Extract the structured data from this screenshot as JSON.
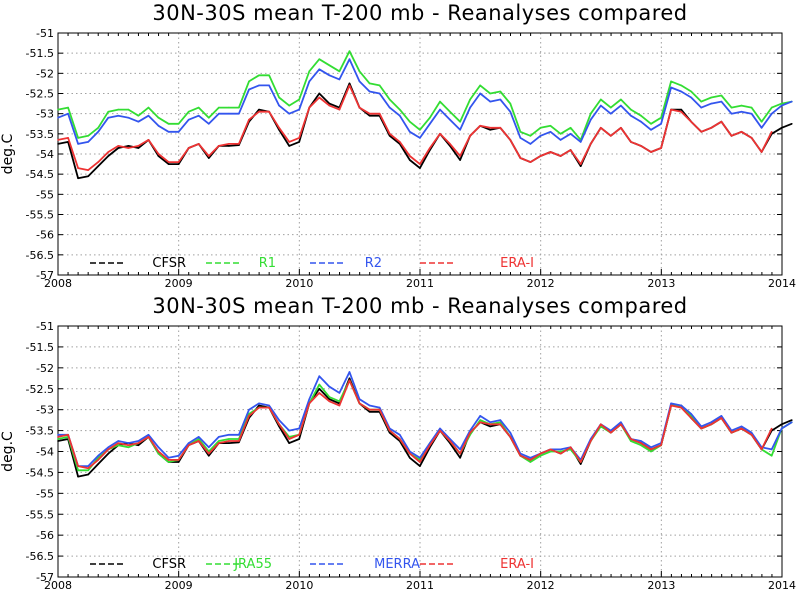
{
  "chart_data": [
    {
      "type": "line",
      "title": "30N-30S mean T-200 mb - Reanalyses compared",
      "ylabel": "deg.C",
      "xlabel": "",
      "ylim": [
        -57,
        -51
      ],
      "yticks": [
        -51,
        -51.5,
        -52,
        -52.5,
        -53,
        -53.5,
        -54,
        -54.5,
        -55,
        -55.5,
        -56,
        -56.5,
        -57
      ],
      "xlim": [
        2008,
        2014
      ],
      "xticks": [
        2008,
        2009,
        2010,
        2011,
        2012,
        2013,
        2014
      ],
      "grid": true,
      "legend_position": "bottom-left",
      "series": [
        {
          "name": "CFSR",
          "color": "#000000",
          "x_start": 2008.0,
          "x_step": 0.0833,
          "values": [
            -53.75,
            -53.7,
            -54.6,
            -54.55,
            -54.3,
            -54.05,
            -53.85,
            -53.8,
            -53.85,
            -53.65,
            -54.05,
            -54.25,
            -54.25,
            -53.85,
            -53.75,
            -54.1,
            -53.8,
            -53.8,
            -53.78,
            -53.2,
            -52.9,
            -52.95,
            -53.4,
            -53.8,
            -53.7,
            -52.85,
            -52.5,
            -52.75,
            -52.85,
            -52.25,
            -52.85,
            -53.05,
            -53.05,
            -53.55,
            -53.75,
            -54.15,
            -54.35,
            -53.9,
            -53.5,
            -53.8,
            -54.15,
            -53.55,
            -53.3,
            -53.4,
            -53.35,
            -53.65,
            -54.1,
            -54.2,
            -54.05,
            -53.95,
            -54.05,
            -53.9,
            -54.3,
            -53.75,
            -53.35,
            -53.55,
            -53.35,
            -53.7,
            -53.8,
            -53.95,
            -53.85,
            -52.9,
            -52.9,
            -53.2,
            -53.45,
            -53.35,
            -53.2,
            -53.55,
            -53.45,
            -53.6,
            -53.95,
            -53.5,
            -53.35,
            -53.25
          ]
        },
        {
          "name": "R1",
          "color": "#33dd33",
          "x_start": 2008.0,
          "x_step": 0.0833,
          "values": [
            -52.9,
            -52.85,
            -53.6,
            -53.55,
            -53.35,
            -52.95,
            -52.9,
            -52.9,
            -53.05,
            -52.85,
            -53.1,
            -53.25,
            -53.25,
            -52.95,
            -52.85,
            -53.1,
            -52.85,
            -52.85,
            -52.85,
            -52.2,
            -52.05,
            -52.05,
            -52.6,
            -52.8,
            -52.65,
            -51.95,
            -51.65,
            -51.8,
            -51.95,
            -51.45,
            -51.95,
            -52.25,
            -52.3,
            -52.65,
            -52.9,
            -53.2,
            -53.4,
            -53.1,
            -52.7,
            -52.95,
            -53.2,
            -52.65,
            -52.3,
            -52.5,
            -52.45,
            -52.75,
            -53.45,
            -53.55,
            -53.35,
            -53.3,
            -53.5,
            -53.35,
            -53.65,
            -53.0,
            -52.65,
            -52.85,
            -52.65,
            -52.9,
            -53.05,
            -53.25,
            -53.1,
            -52.2,
            -52.3,
            -52.45,
            -52.7,
            -52.6,
            -52.55,
            -52.85,
            -52.8,
            -52.85,
            -53.2,
            -52.85,
            -52.75,
            -52.7
          ]
        },
        {
          "name": "R2",
          "color": "#3355ee",
          "x_start": 2008.0,
          "x_step": 0.0833,
          "values": [
            -53.1,
            -53.0,
            -53.75,
            -53.7,
            -53.45,
            -53.1,
            -53.05,
            -53.1,
            -53.2,
            -53.05,
            -53.3,
            -53.45,
            -53.45,
            -53.15,
            -53.05,
            -53.25,
            -53.0,
            -53.0,
            -53.0,
            -52.4,
            -52.3,
            -52.3,
            -52.8,
            -53.0,
            -52.9,
            -52.2,
            -51.9,
            -52.05,
            -52.15,
            -51.65,
            -52.2,
            -52.45,
            -52.5,
            -52.85,
            -53.05,
            -53.45,
            -53.6,
            -53.25,
            -52.9,
            -53.15,
            -53.4,
            -52.85,
            -52.5,
            -52.7,
            -52.65,
            -52.95,
            -53.6,
            -53.75,
            -53.55,
            -53.45,
            -53.65,
            -53.5,
            -53.7,
            -53.15,
            -52.8,
            -53.0,
            -52.8,
            -53.05,
            -53.2,
            -53.4,
            -53.25,
            -52.35,
            -52.45,
            -52.6,
            -52.85,
            -52.75,
            -52.7,
            -53.0,
            -52.95,
            -53.0,
            -53.35,
            -53.0,
            -52.8,
            -52.7
          ]
        },
        {
          "name": "ERA-I",
          "color": "#ee3333",
          "x_start": 2008.0,
          "x_step": 0.0833,
          "values": [
            -53.65,
            -53.6,
            -54.35,
            -54.4,
            -54.2,
            -53.95,
            -53.8,
            -53.85,
            -53.8,
            -53.65,
            -54.0,
            -54.2,
            -54.2,
            -53.85,
            -53.75,
            -54.05,
            -53.8,
            -53.75,
            -53.75,
            -53.15,
            -52.95,
            -52.95,
            -53.35,
            -53.7,
            -53.6,
            -52.85,
            -52.6,
            -52.8,
            -52.9,
            -52.3,
            -52.85,
            -53.0,
            -53.0,
            -53.5,
            -53.7,
            -54.05,
            -54.25,
            -53.85,
            -53.5,
            -53.75,
            -54.05,
            -53.55,
            -53.3,
            -53.35,
            -53.35,
            -53.65,
            -54.1,
            -54.2,
            -54.05,
            -53.95,
            -54.05,
            -53.9,
            -54.25,
            -53.75,
            -53.35,
            -53.55,
            -53.35,
            -53.7,
            -53.8,
            -53.95,
            -53.85,
            -52.9,
            -52.95,
            -53.2,
            -53.45,
            -53.35,
            -53.2,
            -53.55,
            -53.45,
            -53.6,
            -53.95,
            -53.45
          ]
        }
      ]
    },
    {
      "type": "line",
      "title": "30N-30S mean T-200 mb - Reanalyses compared",
      "ylabel": "deg.C",
      "xlabel": "",
      "ylim": [
        -57,
        -51
      ],
      "yticks": [
        -51,
        -51.5,
        -52,
        -52.5,
        -53,
        -53.5,
        -54,
        -54.5,
        -55,
        -55.5,
        -56,
        -56.5,
        -57
      ],
      "xlim": [
        2008,
        2014
      ],
      "xticks": [
        2008,
        2009,
        2010,
        2011,
        2012,
        2013,
        2014
      ],
      "grid": true,
      "legend_position": "bottom-left",
      "series": [
        {
          "name": "CFSR",
          "color": "#000000",
          "x_start": 2008.0,
          "x_step": 0.0833,
          "values": [
            -53.75,
            -53.7,
            -54.6,
            -54.55,
            -54.3,
            -54.05,
            -53.85,
            -53.8,
            -53.85,
            -53.65,
            -54.05,
            -54.25,
            -54.25,
            -53.85,
            -53.75,
            -54.1,
            -53.8,
            -53.8,
            -53.78,
            -53.2,
            -52.9,
            -52.95,
            -53.4,
            -53.8,
            -53.7,
            -52.85,
            -52.5,
            -52.75,
            -52.85,
            -52.25,
            -52.85,
            -53.05,
            -53.05,
            -53.55,
            -53.75,
            -54.15,
            -54.35,
            -53.9,
            -53.5,
            -53.8,
            -54.15,
            -53.55,
            -53.3,
            -53.4,
            -53.35,
            -53.65,
            -54.1,
            -54.2,
            -54.05,
            -53.95,
            -54.05,
            -53.9,
            -54.3,
            -53.75,
            -53.35,
            -53.55,
            -53.35,
            -53.7,
            -53.8,
            -53.95,
            -53.85,
            -52.9,
            -52.9,
            -53.2,
            -53.45,
            -53.35,
            -53.2,
            -53.55,
            -53.45,
            -53.6,
            -53.95,
            -53.5,
            -53.35,
            -53.25
          ]
        },
        {
          "name": "JRA55",
          "color": "#33dd33",
          "x_start": 2008.0,
          "x_step": 0.0833,
          "values": [
            -53.7,
            -53.65,
            -54.45,
            -54.45,
            -54.15,
            -53.95,
            -53.85,
            -53.9,
            -53.8,
            -53.65,
            -54.05,
            -54.25,
            -54.2,
            -53.85,
            -53.7,
            -54.0,
            -53.75,
            -53.7,
            -53.7,
            -53.1,
            -52.95,
            -52.95,
            -53.35,
            -53.65,
            -53.6,
            -52.85,
            -52.4,
            -52.7,
            -52.8,
            -52.3,
            -52.85,
            -53.0,
            -53.0,
            -53.5,
            -53.7,
            -54.05,
            -54.2,
            -53.8,
            -53.5,
            -53.75,
            -54.05,
            -53.6,
            -53.25,
            -53.35,
            -53.3,
            -53.65,
            -54.1,
            -54.25,
            -54.1,
            -54.0,
            -54.0,
            -53.95,
            -54.25,
            -53.75,
            -53.4,
            -53.55,
            -53.35,
            -53.75,
            -53.85,
            -54.0,
            -53.85,
            -52.9,
            -52.9,
            -53.15,
            -53.45,
            -53.35,
            -53.2,
            -53.55,
            -53.45,
            -53.6,
            -53.95,
            -54.1,
            -53.45,
            -53.3
          ]
        },
        {
          "name": "MERRA",
          "color": "#3355ee",
          "x_start": 2008.0,
          "x_step": 0.0833,
          "values": [
            -53.6,
            -53.6,
            -54.35,
            -54.35,
            -54.1,
            -53.9,
            -53.75,
            -53.8,
            -53.75,
            -53.6,
            -53.9,
            -54.15,
            -54.1,
            -53.8,
            -53.65,
            -53.9,
            -53.65,
            -53.6,
            -53.6,
            -53.0,
            -52.85,
            -52.9,
            -53.25,
            -53.5,
            -53.45,
            -52.75,
            -52.2,
            -52.45,
            -52.6,
            -52.1,
            -52.75,
            -52.9,
            -52.95,
            -53.45,
            -53.6,
            -54.0,
            -54.15,
            -53.8,
            -53.45,
            -53.7,
            -53.95,
            -53.5,
            -53.15,
            -53.3,
            -53.25,
            -53.55,
            -54.05,
            -54.15,
            -54.05,
            -53.95,
            -53.95,
            -53.9,
            -54.2,
            -53.7,
            -53.35,
            -53.5,
            -53.3,
            -53.7,
            -53.75,
            -53.9,
            -53.8,
            -52.85,
            -52.9,
            -53.1,
            -53.4,
            -53.3,
            -53.15,
            -53.5,
            -53.4,
            -53.55,
            -53.9,
            -53.95,
            -53.45,
            -53.3
          ]
        },
        {
          "name": "ERA-I",
          "color": "#ee3333",
          "x_start": 2008.0,
          "x_step": 0.0833,
          "values": [
            -53.65,
            -53.6,
            -54.35,
            -54.4,
            -54.2,
            -53.95,
            -53.8,
            -53.85,
            -53.8,
            -53.65,
            -54.0,
            -54.2,
            -54.2,
            -53.85,
            -53.75,
            -54.05,
            -53.8,
            -53.75,
            -53.75,
            -53.15,
            -52.95,
            -52.95,
            -53.35,
            -53.7,
            -53.6,
            -52.85,
            -52.6,
            -52.8,
            -52.9,
            -52.3,
            -52.85,
            -53.0,
            -53.0,
            -53.5,
            -53.7,
            -54.05,
            -54.25,
            -53.85,
            -53.5,
            -53.75,
            -54.05,
            -53.55,
            -53.3,
            -53.35,
            -53.35,
            -53.65,
            -54.1,
            -54.2,
            -54.05,
            -53.95,
            -54.05,
            -53.9,
            -54.25,
            -53.75,
            -53.35,
            -53.55,
            -53.35,
            -53.7,
            -53.8,
            -53.95,
            -53.85,
            -52.9,
            -52.95,
            -53.2,
            -53.45,
            -53.35,
            -53.2,
            -53.55,
            -53.45,
            -53.6,
            -53.95,
            -53.45
          ]
        }
      ]
    }
  ]
}
